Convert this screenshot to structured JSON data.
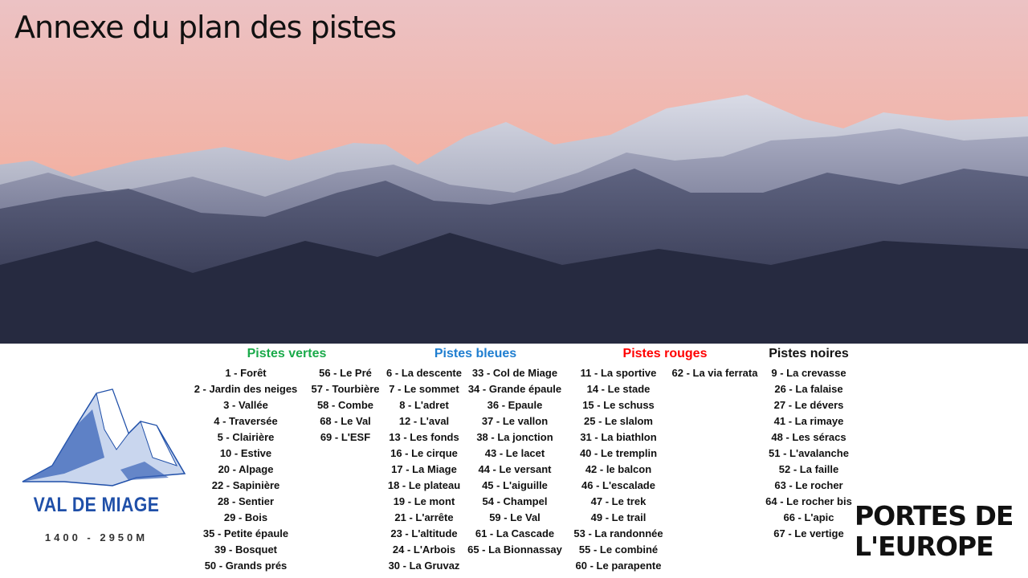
{
  "title": "Annexe du plan des pistes",
  "logo": {
    "name": "VAL DE MIAGE",
    "altitude": "1400 - 2950M"
  },
  "partner_logo": {
    "line1": "PORTES DE",
    "line2": "L'EUROPE"
  },
  "colors": {
    "vertes": "#1aaa4a",
    "bleues": "#1f7ed0",
    "rouges": "#ff0000",
    "noires": "#111111"
  },
  "sections": [
    {
      "key": "vertes",
      "heading": "Pistes vertes",
      "columns": [
        [
          "1 - Forêt",
          "2 - Jardin des neiges",
          "3 - Vallée",
          "4 - Traversée",
          "5 - Clairière",
          "10 - Estive",
          "20 - Alpage",
          "22 - Sapinière",
          "28 - Sentier",
          "29 - Bois",
          "35 - Petite épaule",
          "39 - Bosquet",
          "50 - Grands prés"
        ],
        [
          "56 - Le Pré",
          "57 - Tourbière",
          "58 - Combe",
          "68 - Le Val",
          "69 - L'ESF"
        ]
      ]
    },
    {
      "key": "bleues",
      "heading": "Pistes bleues",
      "columns": [
        [
          "6 - La descente",
          "7 - Le sommet",
          "8 - L'adret",
          "12 - L'aval",
          "13 - Les fonds",
          "16 - Le cirque",
          "17 - La Miage",
          "18 - Le plateau",
          "19 - Le mont",
          "21 - L'arrête",
          "23 - L'altitude",
          "24 - L'Arbois",
          "30 - La Gruvaz"
        ],
        [
          "33 - Col de Miage",
          "34 - Grande épaule",
          "36 - Epaule",
          "37 - Le vallon",
          "38 - La jonction",
          "43 - Le lacet",
          "44 - Le versant",
          "45 - L'aiguille",
          "54 - Champel",
          "59 - Le Val",
          "61 - La Cascade",
          "65 - La Bionnassay"
        ]
      ]
    },
    {
      "key": "rouges",
      "heading": "Pistes rouges",
      "columns": [
        [
          "11 - La sportive",
          "14 - Le stade",
          "15 - Le schuss",
          "25 - Le slalom",
          "31 - La biathlon",
          "40 - Le tremplin",
          "42 - le balcon",
          "46 - L'escalade",
          "47 - Le trek",
          "49 - Le trail",
          "53 - La randonnée",
          "55 - Le combiné",
          "60 - Le parapente"
        ],
        [
          "62 - La via ferrata"
        ]
      ]
    },
    {
      "key": "noires",
      "heading": "Pistes noires",
      "columns": [
        [
          "9 - La crevasse",
          "26 - La falaise",
          "27 - Le dévers",
          "41 - La rimaye",
          "48 - Les séracs",
          "51 - L'avalanche",
          "52 - La faille",
          "63 - Le rocher",
          "64 - Le rocher bis",
          "66 - L'apic",
          "67 - Le vertige"
        ]
      ]
    }
  ]
}
